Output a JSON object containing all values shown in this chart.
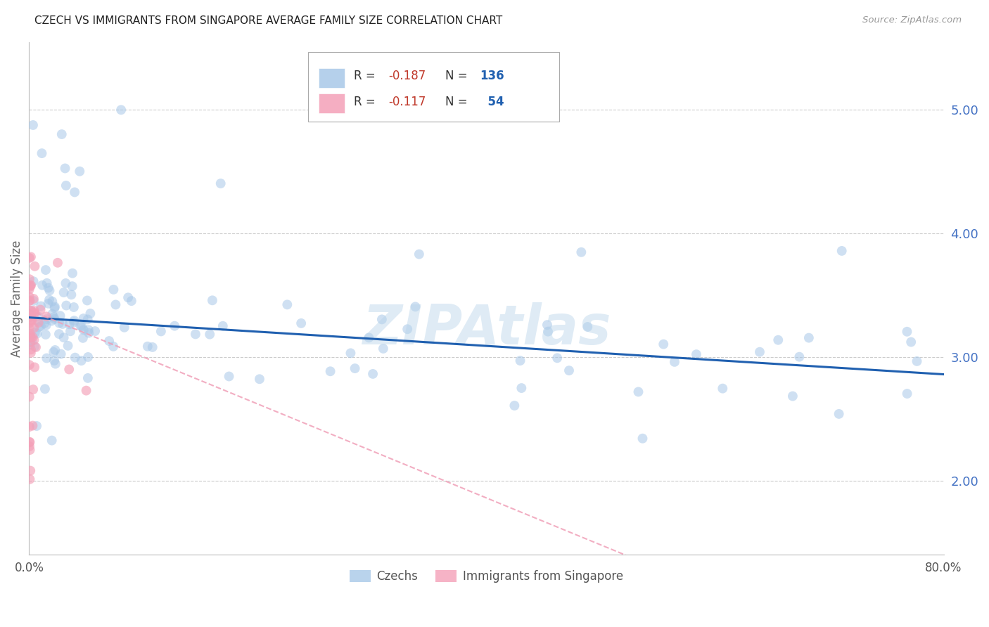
{
  "title": "CZECH VS IMMIGRANTS FROM SINGAPORE AVERAGE FAMILY SIZE CORRELATION CHART",
  "source": "Source: ZipAtlas.com",
  "ylabel": "Average Family Size",
  "watermark": "ZIPAtlas",
  "right_ytick_labels": [
    "2.00",
    "3.00",
    "4.00",
    "5.00"
  ],
  "right_ytick_values": [
    2.0,
    3.0,
    4.0,
    5.0
  ],
  "blue_color": "#a8c8e8",
  "pink_color": "#f4a0b8",
  "blue_trend_color": "#2060b0",
  "pink_trend_color": "#f0a0b8",
  "xlim": [
    0,
    80
  ],
  "ylim": [
    1.4,
    5.55
  ],
  "blue_trend_start": 3.32,
  "blue_trend_end": 2.86,
  "pink_trend_start": 3.38,
  "pink_trend_end_x": 80,
  "pink_trend_slope": -0.038,
  "background_color": "#ffffff",
  "grid_color": "#cccccc",
  "grid_yticks": [
    2.0,
    3.0,
    4.0,
    5.0
  ],
  "ytick_color": "#4472c4",
  "title_color": "#222222",
  "source_color": "#999999",
  "ylabel_color": "#666666"
}
